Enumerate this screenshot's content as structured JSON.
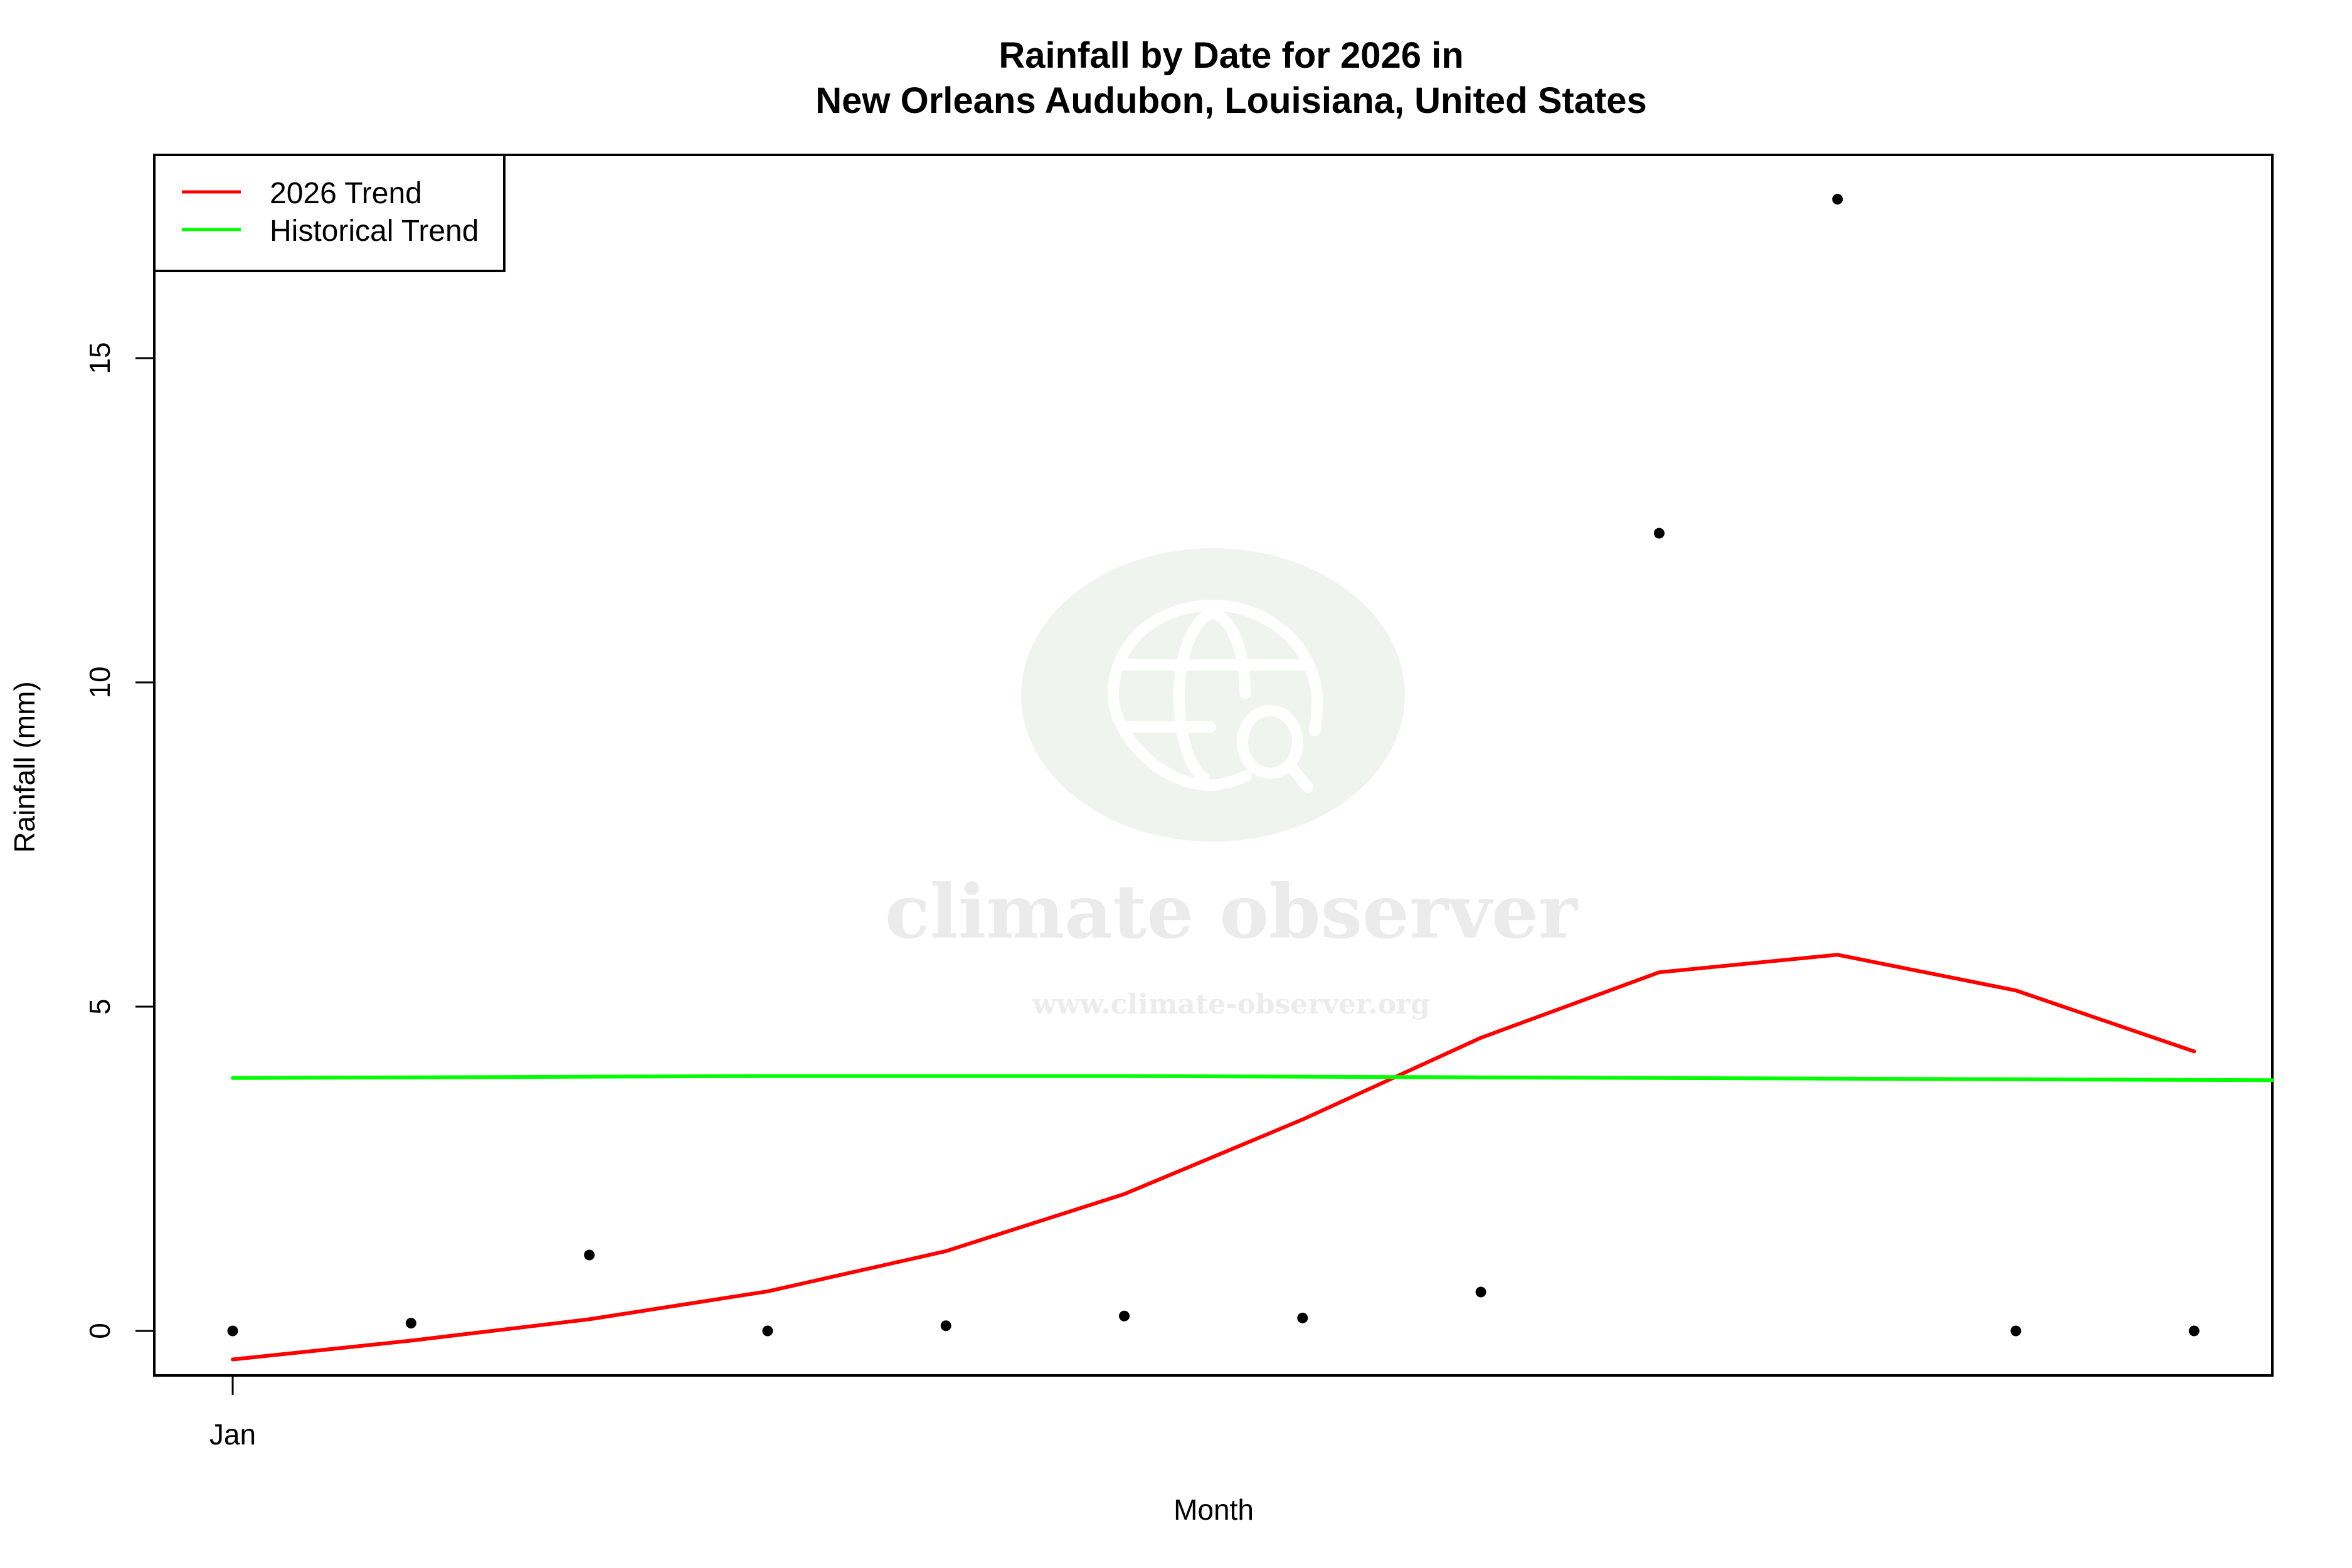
{
  "chart_data": {
    "type": "scatter",
    "title": "Rainfall by Date for 2026 in",
    "subtitle": "New Orleans Audubon, Louisiana, United States",
    "xlabel": "Month",
    "ylabel": "Rainfall (mm)",
    "x_tick_labels": [
      "Jan"
    ],
    "y_ticks": [
      0,
      5,
      10,
      15
    ],
    "ylim": [
      -0.7,
      18.2
    ],
    "grid": false,
    "legend_position": "topleft",
    "legend": [
      {
        "label": "2026 Trend",
        "color": "#ff0000"
      },
      {
        "label": "Historical Trend",
        "color": "#00ff00"
      }
    ],
    "x": [
      1,
      2,
      3,
      4,
      5,
      6,
      7,
      8,
      9,
      10,
      11,
      12
    ],
    "series": [
      {
        "name": "Observed rainfall",
        "kind": "points",
        "color": "#000000",
        "values": [
          0.0,
          0.12,
          1.17,
          0.0,
          0.08,
          0.23,
          0.2,
          0.6,
          12.3,
          17.45,
          0.0,
          0.0
        ]
      },
      {
        "name": "2026 Trend",
        "kind": "line",
        "color": "#ff0000",
        "values": [
          -0.44,
          -0.15,
          0.18,
          0.61,
          1.23,
          2.11,
          3.26,
          4.52,
          5.53,
          5.8,
          5.25,
          4.31
        ]
      },
      {
        "name": "Historical Trend",
        "kind": "line",
        "color": "#00ff00",
        "values": [
          3.9,
          3.91,
          3.92,
          3.93,
          3.93,
          3.93,
          3.92,
          3.91,
          3.9,
          3.89,
          3.88,
          3.87
        ],
        "extends_to_right_edge": true
      }
    ]
  },
  "watermark": {
    "name": "climate observer",
    "url": "www.climate-observer.org"
  }
}
